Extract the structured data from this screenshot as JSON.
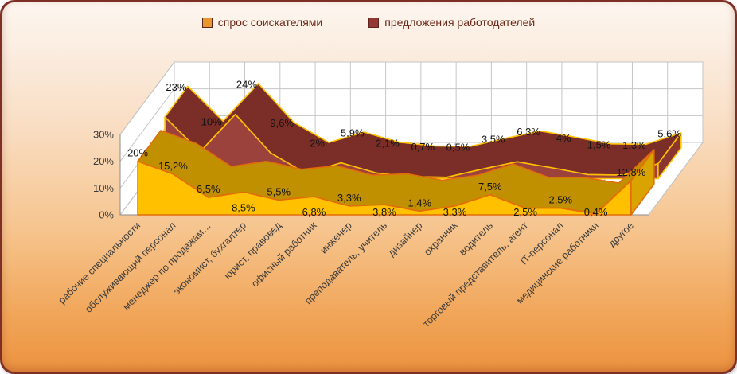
{
  "legend": {
    "items": [
      {
        "label": "спрос соискателями",
        "color": "#E8962F",
        "border": "#5e241a"
      },
      {
        "label": "предложения работодателей",
        "color": "#943634",
        "border": "#5e241a"
      }
    ],
    "text_color": "#6b2817"
  },
  "chart_data": {
    "type": "area",
    "subtype": "3d-area",
    "title": "",
    "xlabel": "",
    "ylabel": "",
    "y_ticks": [
      "0%",
      "10%",
      "20%",
      "30%"
    ],
    "y_tick_values": [
      0,
      10,
      20,
      30
    ],
    "ylim": [
      0,
      30
    ],
    "grid": true,
    "legend_position": "top",
    "wall_color": "#FFFFFF",
    "grid_color": "#C6C6C6",
    "edge_color": "#ABABAB",
    "axis_color": "#8C8C8C",
    "label_color": "#141414",
    "categories": [
      "рабочие специальности",
      "обслуживающий персонал",
      "менеджер по продажам…",
      "экономист, бухгалтер",
      "юрист, правовед",
      "офисный работник",
      "инженер",
      "преподаватель, учитель",
      "дизайнер",
      "охранник",
      "водитель",
      "торговый представитель, агент",
      "IT-персонал",
      "медицинские работники",
      "другое"
    ],
    "series": [
      {
        "name": "спрос соискателями",
        "values": [
          20,
          15.2,
          6.5,
          8.5,
          5.5,
          6.8,
          3.3,
          3.8,
          1.4,
          3.3,
          7.5,
          2.5,
          2.5,
          0.4,
          12.8
        ],
        "labels": [
          "20%",
          "15,2%",
          "6,5%",
          "8,5%",
          "5,5%",
          "6,8%",
          "3,3%",
          "3,8%",
          "1,4%",
          "3,3%",
          "7,5%",
          "2,5%",
          "2,5%",
          "0,4%",
          "12,8%"
        ],
        "front_color": "#FFC000",
        "top_color": "#C09000",
        "cap_color": "#D9A300",
        "line_color": "#E36C0A"
      },
      {
        "name": "предложения работодателей",
        "values": [
          23,
          10,
          24,
          9.6,
          2,
          5.9,
          2.1,
          0.7,
          0.5,
          3.5,
          6.3,
          4,
          1.5,
          1.3,
          5.6
        ],
        "labels": [
          "23%",
          "10%",
          "24%",
          "9,6%",
          "2%",
          "5,9%",
          "2,1%",
          "0,7%",
          "0,5%",
          "3,5%",
          "6,3%",
          "4%",
          "1,5%",
          "1,3%",
          "5,6%"
        ],
        "front_color": "#9C423C",
        "top_color": "#7B2D27",
        "cap_color": "#8A352F",
        "line_color": "#FFC000"
      }
    ]
  }
}
